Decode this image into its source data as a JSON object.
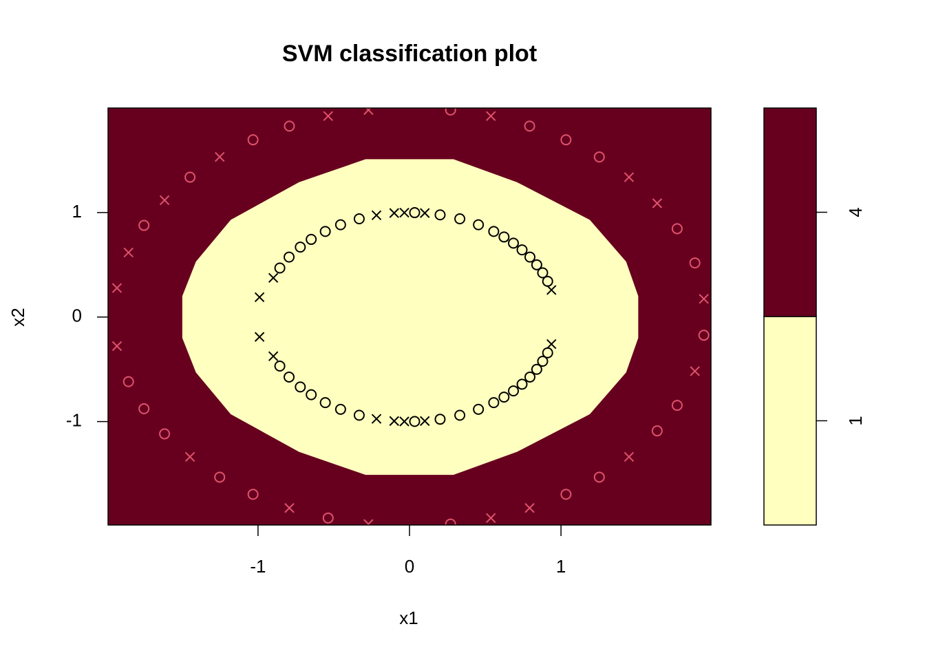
{
  "chart_data": {
    "type": "svm",
    "title": "SVM classification plot",
    "xlabel": "x1",
    "ylabel": "x2",
    "xlim": [
      -1.99,
      1.99
    ],
    "ylim": [
      -1.99,
      2.0
    ],
    "xticks": [
      -1,
      0,
      1
    ],
    "yticks": [
      -1,
      0,
      1
    ],
    "colorbar": {
      "labels": [
        "1",
        "4"
      ],
      "colors": [
        "#FFFFBF",
        "#67001F"
      ]
    },
    "region": {
      "x": [
        -0.29,
        0.29,
        0.71,
        1.19,
        1.43,
        1.51,
        1.51,
        1.43,
        1.19,
        0.71,
        0.29,
        -0.29,
        -0.73,
        -1.18,
        -1.41,
        -1.5,
        -1.5,
        -1.41,
        -1.18,
        -0.73
      ],
      "y": [
        1.51,
        1.51,
        1.29,
        0.93,
        0.53,
        0.2,
        -0.2,
        -0.53,
        -0.93,
        -1.29,
        -1.51,
        -1.51,
        -1.29,
        -0.93,
        -0.53,
        -0.2,
        0.2,
        0.53,
        0.93,
        1.29
      ]
    },
    "series": [
      {
        "color": "#000000",
        "marker": "circle",
        "x": [
          0.912,
          0.879,
          0.84,
          0.795,
          0.743,
          0.686,
          0.624,
          0.556,
          0.455,
          0.332,
          0.202,
          0.034,
          -0.332,
          -0.455,
          -0.556,
          -0.649,
          -0.721,
          -0.795,
          -0.856,
          0.912,
          0.879,
          0.84,
          0.795,
          0.743,
          0.686,
          0.624,
          0.556,
          0.455,
          0.332,
          0.202,
          0.034,
          -0.332,
          -0.455,
          -0.556,
          -0.649,
          -0.721,
          -0.795,
          -0.856
        ],
        "y": [
          0.342,
          0.423,
          0.5,
          0.574,
          0.643,
          0.707,
          0.766,
          0.819,
          0.883,
          0.94,
          0.978,
          0.999,
          0.94,
          0.883,
          0.819,
          0.743,
          0.669,
          0.574,
          0.469,
          -0.342,
          -0.423,
          -0.5,
          -0.574,
          -0.643,
          -0.707,
          -0.766,
          -0.819,
          -0.883,
          -0.94,
          -0.978,
          -0.999,
          -0.94,
          -0.883,
          -0.819,
          -0.743,
          -0.669,
          -0.574,
          -0.469
        ]
      },
      {
        "color": "#000000",
        "marker": "cross",
        "x": [
          0.937,
          0.101,
          -0.034,
          -0.101,
          -0.218,
          -0.899,
          -0.99,
          0.937,
          0.101,
          -0.034,
          -0.101,
          -0.218,
          -0.899,
          -0.99
        ],
        "y": [
          0.259,
          0.995,
          0.999,
          0.995,
          0.974,
          0.375,
          0.19,
          -0.259,
          -0.995,
          -0.999,
          -0.995,
          -0.974,
          -0.375,
          -0.19
        ]
      },
      {
        "color": "#DF536B",
        "marker": "circle",
        "x": [
          1.884,
          1.767,
          1.253,
          1.033,
          0.793,
          0.271,
          -0.793,
          -1.033,
          -1.449,
          -1.753,
          1.943,
          1.767,
          1.635,
          1.253,
          1.033,
          0.271,
          -0.537,
          -1.033,
          -1.253,
          -1.617,
          -1.753,
          -1.855
        ],
        "y": [
          0.518,
          0.845,
          1.532,
          1.696,
          1.827,
          1.981,
          1.827,
          1.696,
          1.338,
          0.877,
          -0.174,
          -0.845,
          -1.089,
          -1.532,
          -1.696,
          -1.981,
          -1.923,
          -1.696,
          -1.532,
          -1.118,
          -0.877,
          -0.618
        ]
      },
      {
        "color": "#DF536B",
        "marker": "cross",
        "x": [
          1.943,
          1.635,
          1.449,
          0.537,
          -0.271,
          -0.537,
          -1.253,
          -1.617,
          -1.855,
          -1.931,
          1.884,
          1.449,
          0.793,
          0.537,
          -0.271,
          -0.793,
          -1.449,
          -1.931
        ],
        "y": [
          0.174,
          1.089,
          1.338,
          1.923,
          1.981,
          1.923,
          1.532,
          1.118,
          0.618,
          0.278,
          -0.518,
          -1.338,
          -1.827,
          -1.923,
          -1.981,
          -1.827,
          -1.338,
          -0.278
        ]
      }
    ]
  }
}
